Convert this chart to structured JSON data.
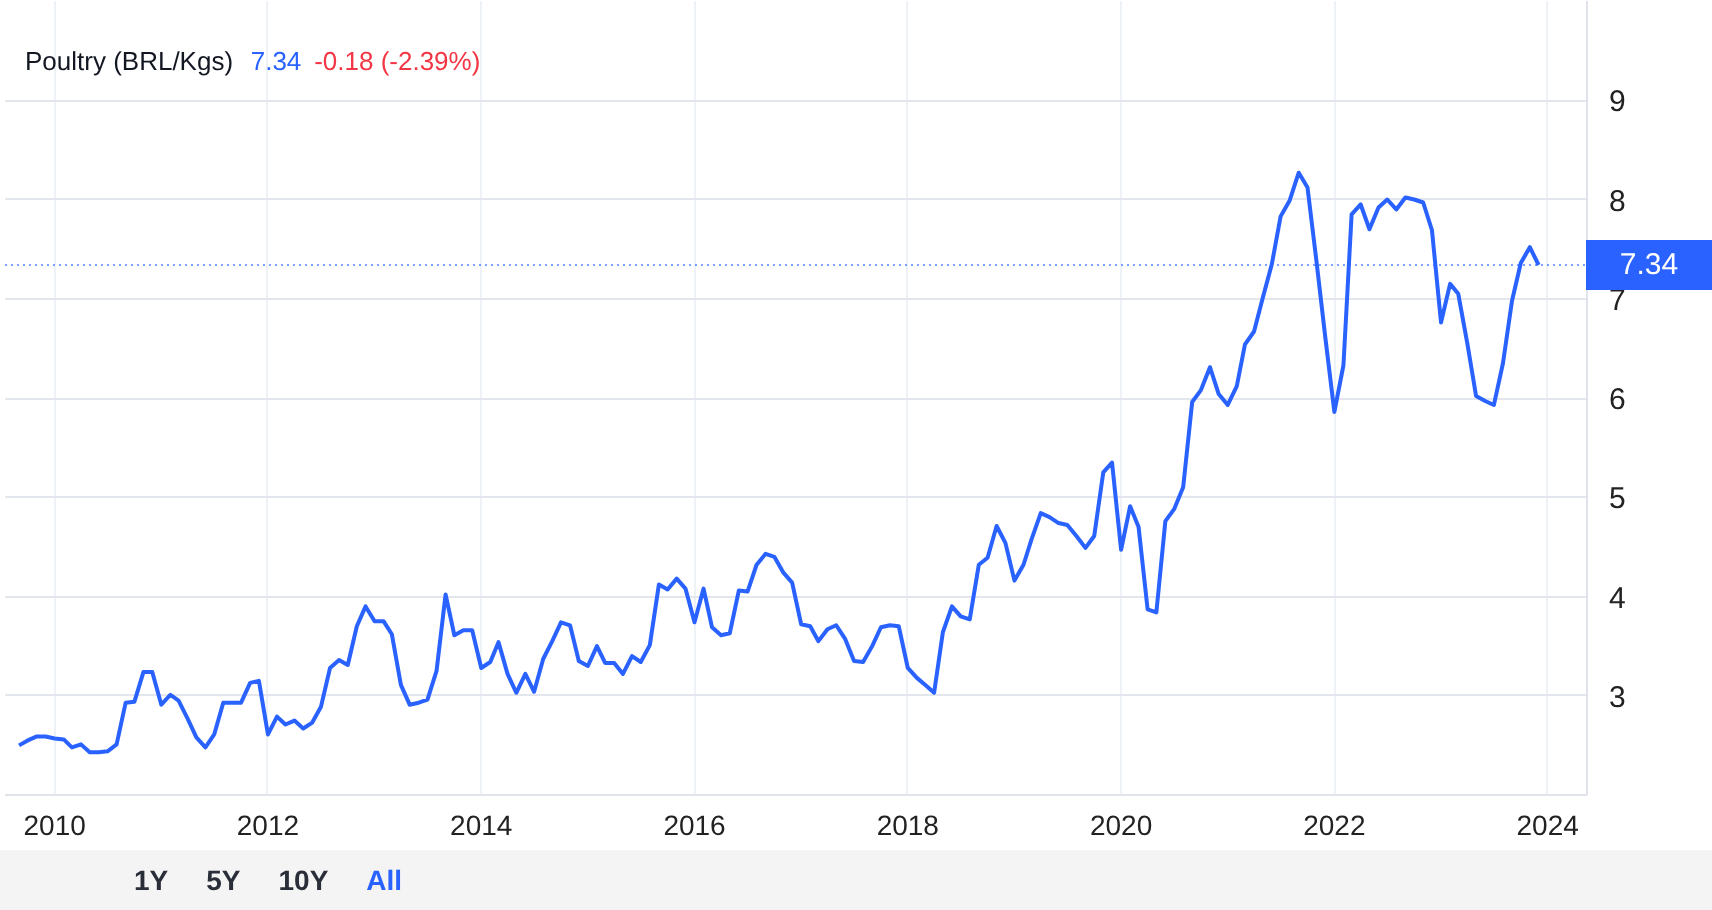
{
  "chart_data": {
    "type": "line",
    "title": "Poultry (BRL/Kgs)",
    "annotations": [
      "7.34",
      "-0.18 (-2.39%)",
      "1Y",
      "5Y",
      "10Y",
      "All"
    ],
    "x": [
      "2009-09",
      "2009-10",
      "2009-11",
      "2009-12",
      "2010-01",
      "2010-02",
      "2010-03",
      "2010-04",
      "2010-05",
      "2010-06",
      "2010-07",
      "2010-08",
      "2010-09",
      "2010-10",
      "2010-11",
      "2010-12",
      "2011-01",
      "2011-02",
      "2011-03",
      "2011-04",
      "2011-05",
      "2011-06",
      "2011-07",
      "2011-08",
      "2011-09",
      "2011-10",
      "2011-11",
      "2011-12",
      "2012-01",
      "2012-02",
      "2012-03",
      "2012-04",
      "2012-05",
      "2012-06",
      "2012-07",
      "2012-08",
      "2012-09",
      "2012-10",
      "2012-11",
      "2012-12",
      "2013-01",
      "2013-02",
      "2013-03",
      "2013-04",
      "2013-05",
      "2013-06",
      "2013-07",
      "2013-08",
      "2013-09",
      "2013-10",
      "2013-11",
      "2013-12",
      "2014-01",
      "2014-02",
      "2014-03",
      "2014-04",
      "2014-05",
      "2014-06",
      "2014-07",
      "2014-08",
      "2014-09",
      "2014-10",
      "2014-11",
      "2014-12",
      "2015-01",
      "2015-02",
      "2015-03",
      "2015-04",
      "2015-05",
      "2015-06",
      "2015-07",
      "2015-08",
      "2015-09",
      "2015-10",
      "2015-11",
      "2015-12",
      "2016-01",
      "2016-02",
      "2016-03",
      "2016-04",
      "2016-05",
      "2016-06",
      "2016-07",
      "2016-08",
      "2016-09",
      "2016-10",
      "2016-11",
      "2016-12",
      "2017-01",
      "2017-02",
      "2017-03",
      "2017-04",
      "2017-05",
      "2017-06",
      "2017-07",
      "2017-08",
      "2017-09",
      "2017-10",
      "2017-11",
      "2017-12",
      "2018-01",
      "2018-02",
      "2018-03",
      "2018-04",
      "2018-05",
      "2018-06",
      "2018-07",
      "2018-08",
      "2018-09",
      "2018-10",
      "2018-11",
      "2018-12",
      "2019-01",
      "2019-02",
      "2019-03",
      "2019-04",
      "2019-05",
      "2019-06",
      "2019-07",
      "2019-08",
      "2019-09",
      "2019-10",
      "2019-11",
      "2019-12",
      "2020-01",
      "2020-02",
      "2020-03",
      "2020-04",
      "2020-05",
      "2020-06",
      "2020-07",
      "2020-08",
      "2020-09",
      "2020-10",
      "2020-11",
      "2020-12",
      "2021-01",
      "2021-02",
      "2021-03",
      "2021-04",
      "2021-05",
      "2021-06",
      "2021-07",
      "2021-08",
      "2021-09",
      "2021-10",
      "2021-11",
      "2021-12",
      "2022-01",
      "2022-02",
      "2022-03",
      "2022-04",
      "2022-05",
      "2022-06",
      "2022-07",
      "2022-08",
      "2022-09",
      "2022-10",
      "2022-11",
      "2022-12",
      "2023-01",
      "2023-02",
      "2023-03",
      "2023-04",
      "2023-05",
      "2023-06",
      "2023-07",
      "2023-08",
      "2023-09",
      "2023-10",
      "2023-11",
      "2023-12"
    ],
    "series": [
      {
        "color": "#2962ff",
        "values": [
          2.5,
          2.55,
          2.59,
          2.59,
          2.57,
          2.56,
          2.48,
          2.51,
          2.43,
          2.43,
          2.44,
          2.51,
          2.93,
          2.94,
          3.24,
          3.24,
          2.91,
          3.01,
          2.95,
          2.77,
          2.58,
          2.48,
          2.61,
          2.93,
          2.93,
          2.93,
          3.13,
          3.15,
          2.61,
          2.79,
          2.71,
          2.75,
          2.67,
          2.73,
          2.89,
          3.28,
          3.36,
          3.31,
          3.7,
          3.9,
          3.75,
          3.75,
          3.62,
          3.11,
          2.91,
          2.93,
          2.96,
          3.25,
          4.02,
          3.61,
          3.66,
          3.66,
          3.28,
          3.34,
          3.54,
          3.22,
          3.03,
          3.22,
          3.04,
          3.37,
          3.55,
          3.74,
          3.71,
          3.35,
          3.3,
          3.5,
          3.33,
          3.33,
          3.22,
          3.4,
          3.34,
          3.51,
          4.12,
          4.07,
          4.18,
          4.08,
          3.74,
          4.08,
          3.69,
          3.61,
          3.63,
          4.06,
          4.05,
          4.32,
          4.43,
          4.4,
          4.24,
          4.14,
          3.72,
          3.7,
          3.55,
          3.67,
          3.71,
          3.57,
          3.35,
          3.34,
          3.5,
          3.69,
          3.71,
          3.7,
          3.28,
          3.18,
          3.11,
          3.03,
          3.64,
          3.9,
          3.8,
          3.77,
          4.32,
          4.39,
          4.71,
          4.54,
          4.16,
          4.32,
          4.58,
          4.84,
          4.8,
          4.74,
          4.72,
          4.61,
          4.49,
          4.61,
          5.25,
          5.35,
          4.47,
          4.91,
          4.7,
          3.87,
          3.84,
          4.76,
          4.88,
          5.1,
          5.96,
          6.08,
          6.31,
          6.04,
          5.93,
          6.12,
          6.54,
          6.67,
          7.01,
          7.35,
          7.83,
          7.99,
          8.27,
          8.12,
          7.37,
          6.61,
          5.86,
          6.33,
          7.85,
          7.95,
          7.7,
          7.92,
          8.0,
          7.9,
          8.02,
          8.0,
          7.97,
          7.69,
          6.76,
          7.15,
          7.05,
          6.55,
          6.02,
          5.97,
          5.93,
          6.35,
          6.98,
          7.36,
          7.52,
          7.34
        ]
      }
    ],
    "xlim": [
      "2009-07-15",
      "2024-05-15"
    ],
    "xticks": [
      "2010",
      "2012",
      "2014",
      "2016",
      "2018",
      "2020",
      "2022",
      "2024"
    ],
    "ylim": [
      2,
      10
    ],
    "yticks": [
      3,
      4,
      5,
      6,
      7,
      8,
      9
    ],
    "ref_lines": [
      {
        "axis": "y",
        "value": 7.34,
        "label": "7.34",
        "color": "#2962ff",
        "line_style": "dotted"
      }
    ],
    "grid": true,
    "line_style": "solid"
  }
}
